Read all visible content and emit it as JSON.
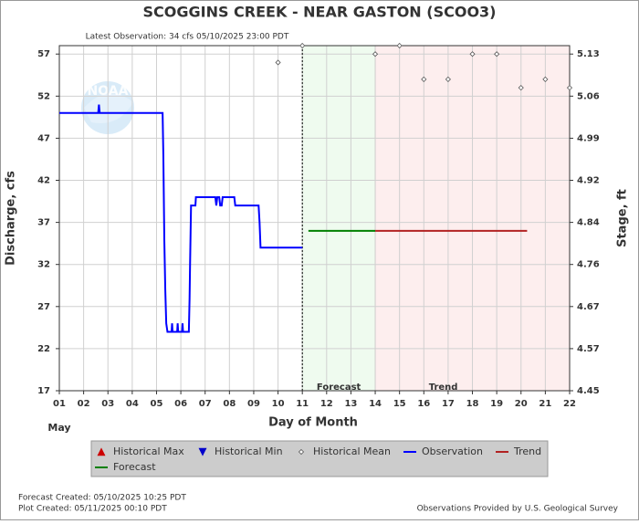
{
  "chart_data": {
    "type": "line",
    "title": "SCOGGINS CREEK - NEAR GASTON  (SCOO3)",
    "subtitle": "Latest Observation: 34 cfs 05/10/2025 23:00 PDT",
    "logo_text": "NOAA",
    "ylabel": "Discharge, cfs",
    "y2label": "Stage, ft",
    "xlabel": "Day of Month",
    "month_label": "May",
    "xlim": [
      1,
      22
    ],
    "xticks": [
      {
        "value": 1,
        "label": "01"
      },
      {
        "value": 2,
        "label": "02"
      },
      {
        "value": 3,
        "label": "03"
      },
      {
        "value": 4,
        "label": "04"
      },
      {
        "value": 5,
        "label": "05"
      },
      {
        "value": 6,
        "label": "06"
      },
      {
        "value": 7,
        "label": "07"
      },
      {
        "value": 8,
        "label": "08"
      },
      {
        "value": 9,
        "label": "09"
      },
      10,
      11,
      12,
      13,
      14,
      15,
      16,
      17,
      18,
      19,
      20,
      21,
      22
    ],
    "ylim": [
      17,
      58
    ],
    "yticks": [
      17,
      22,
      27,
      32,
      37,
      42,
      47,
      52,
      57
    ],
    "y2ticks": [
      4.45,
      4.57,
      4.67,
      4.76,
      4.84,
      4.92,
      4.99,
      5.06,
      5.13
    ],
    "grid": true,
    "forecast_region": {
      "label": "Forecast",
      "x": [
        11,
        14
      ]
    },
    "trend_region": {
      "label": "Trend",
      "x": [
        14,
        22
      ]
    },
    "series": [
      {
        "name": "Historical Max",
        "color": "#cc0000",
        "marker": "triangle-up"
      },
      {
        "name": "Historical Min",
        "color": "#0000cc",
        "marker": "triangle-down"
      },
      {
        "name": "Historical Mean",
        "color": "#555555",
        "marker": "diamond",
        "x": [
          10,
          11,
          14,
          15,
          16,
          17,
          18,
          19,
          20,
          21,
          22
        ],
        "values": [
          56,
          58,
          57,
          58,
          54,
          54,
          57,
          57,
          53,
          54,
          53
        ]
      },
      {
        "name": "Observation",
        "color": "#0000ff",
        "x": [
          1,
          2.6,
          2.63,
          2.66,
          5.25,
          5.28,
          5.32,
          5.36,
          5.4,
          5.45,
          5.62,
          5.64,
          5.66,
          5.85,
          5.87,
          5.89,
          6.05,
          6.07,
          6.09,
          6.33,
          6.36,
          6.38,
          6.42,
          6.6,
          6.62,
          7.42,
          7.46,
          7.5,
          7.58,
          7.62,
          7.68,
          7.72,
          8.2,
          8.24,
          9.2,
          9.24,
          9.28,
          11
        ],
        "values": [
          50,
          50,
          51,
          50,
          50,
          45,
          35,
          29,
          25,
          24,
          24,
          25,
          24,
          24,
          25,
          24,
          24,
          25,
          24,
          24,
          28,
          32,
          39,
          39,
          40,
          40,
          39,
          40,
          40,
          39,
          39,
          40,
          40,
          39,
          39,
          37,
          34,
          34
        ]
      },
      {
        "name": "Trend",
        "color": "#b22222",
        "x": [
          14,
          20.25
        ],
        "values": [
          36,
          36
        ]
      },
      {
        "name": "Forecast",
        "color": "#008000",
        "x": [
          11.25,
          14
        ],
        "values": [
          36,
          36
        ]
      }
    ],
    "footer": {
      "forecast_created": "Forecast Created: 05/10/2025 10:25 PDT",
      "plot_created": "Plot Created: 05/11/2025 00:10 PDT",
      "source": "Observations Provided by U.S. Geological Survey"
    }
  }
}
